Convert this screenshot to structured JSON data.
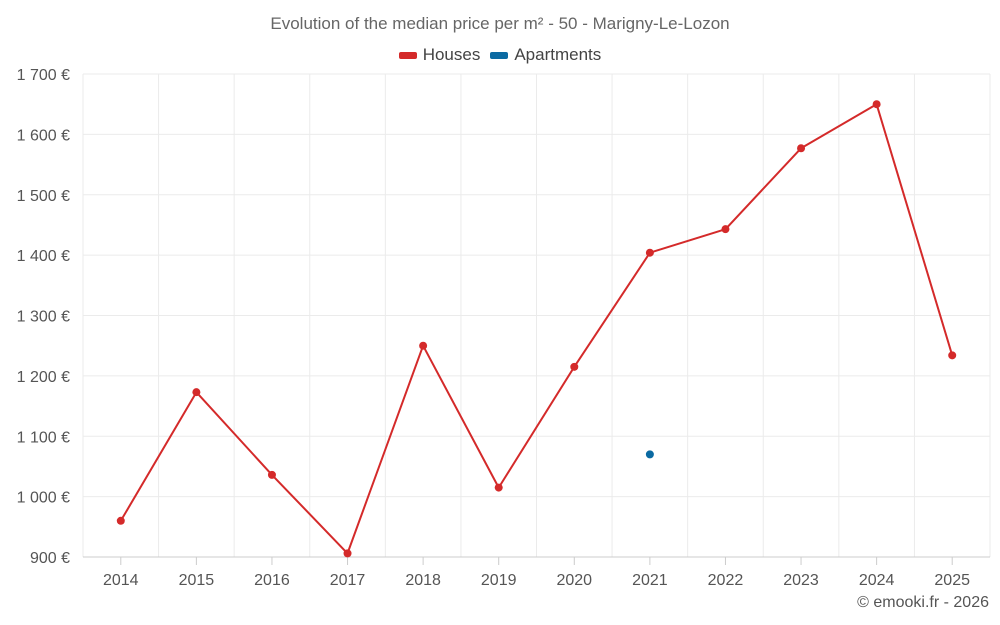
{
  "chart_data": {
    "type": "line",
    "title": "Evolution of the median price per m² - 50 - Marigny-Le-Lozon",
    "xlabel": "",
    "ylabel": "",
    "categories": [
      "2014",
      "2015",
      "2016",
      "2017",
      "2018",
      "2019",
      "2020",
      "2021",
      "2022",
      "2023",
      "2024",
      "2025"
    ],
    "ylim": [
      900,
      1700
    ],
    "yticks": [
      900,
      1000,
      1100,
      1200,
      1300,
      1400,
      1500,
      1600,
      1700
    ],
    "ytick_labels": [
      "900 €",
      "1 000 €",
      "1 100 €",
      "1 200 €",
      "1 300 €",
      "1 400 €",
      "1 500 €",
      "1 600 €",
      "1 700 €"
    ],
    "grid": true,
    "legend_position": "top-center",
    "series": [
      {
        "name": "Houses",
        "color": "#d42a2a",
        "values": [
          960,
          1173,
          1036,
          906,
          1250,
          1015,
          1215,
          1404,
          1443,
          1577,
          1650,
          1234
        ]
      },
      {
        "name": "Apartments",
        "color": "#0b6aa2",
        "values": [
          null,
          null,
          null,
          null,
          null,
          null,
          null,
          1070,
          null,
          null,
          null,
          null
        ]
      }
    ]
  },
  "credit": "© emooki.fr - 2026"
}
